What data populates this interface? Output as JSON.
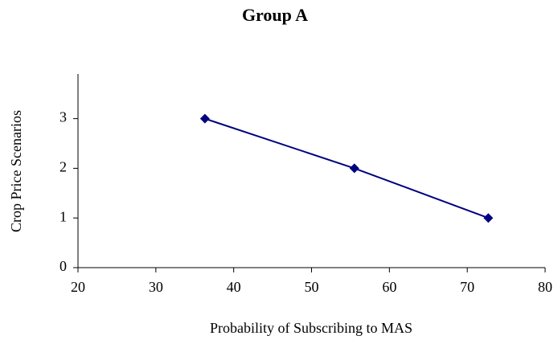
{
  "chart_data": {
    "type": "line",
    "title": "Group A",
    "x_label": "Probability of Subscribing to MAS",
    "y_label": "Crop Price Scenarios",
    "x": [
      36.3,
      55.5,
      72.7
    ],
    "series": [
      {
        "color": "#000080",
        "values": [
          3,
          2,
          1
        ]
      }
    ],
    "xlim": [
      20,
      80
    ],
    "xticks": [
      20,
      30,
      40,
      50,
      60,
      70,
      80
    ],
    "ylim": [
      0,
      3.9
    ],
    "yticks": [
      0,
      1,
      2,
      3
    ],
    "grid": false
  }
}
